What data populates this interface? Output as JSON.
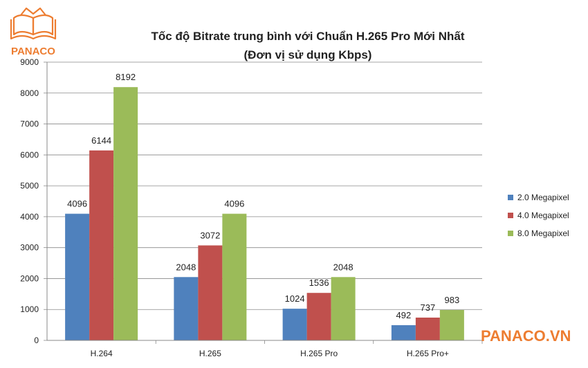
{
  "logo": {
    "text": "PANACO",
    "color": "#ed7d31"
  },
  "watermark": {
    "text": "PANACO.VN",
    "color": "#ed7d31"
  },
  "chart_data": {
    "type": "bar",
    "title": "Tốc độ Bitrate trung bình với Chuẩn H.265 Pro Mới Nhất",
    "subtitle": "(Đơn vị sử dụng Kbps)",
    "xlabel": "",
    "ylabel": "",
    "ylim": [
      0,
      9000
    ],
    "yticks": [
      0,
      1000,
      2000,
      3000,
      4000,
      5000,
      6000,
      7000,
      8000,
      9000
    ],
    "grid": true,
    "legend_position": "right",
    "categories": [
      "H.264",
      "H.265",
      "H.265 Pro",
      "H.265 Pro+"
    ],
    "series": [
      {
        "name": "2.0 Megapixel",
        "color": "#4f81bd",
        "values": [
          4096,
          2048,
          1024,
          492
        ]
      },
      {
        "name": "4.0 Megapixel",
        "color": "#c0504d",
        "values": [
          6144,
          3072,
          1536,
          737
        ]
      },
      {
        "name": "8.0 Megapixel",
        "color": "#9bbb59",
        "values": [
          8192,
          4096,
          2048,
          983
        ]
      }
    ]
  }
}
